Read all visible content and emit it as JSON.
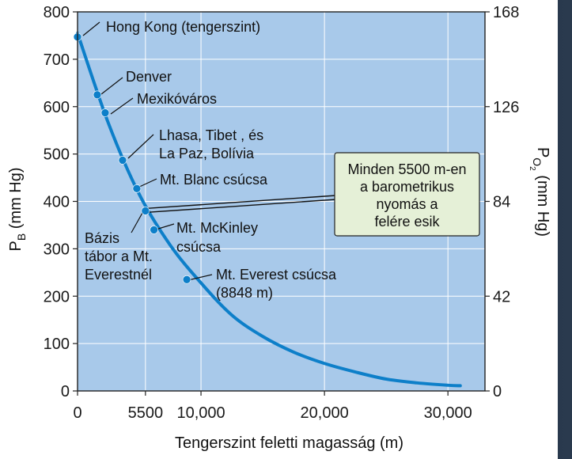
{
  "chart_data": {
    "type": "line",
    "xlabel": "Tengerszint feletti magasság (m)",
    "ylabel_left": "P",
    "ylabel_left_sub": "B",
    "ylabel_left_unit": " (mm Hg)",
    "ylabel_right": "P",
    "ylabel_right_sub": "O",
    "ylabel_right_sub2": "2",
    "ylabel_right_unit": " (mm Hg)",
    "xlim": [
      0,
      33000
    ],
    "ylim": [
      0,
      800
    ],
    "y2lim": [
      0,
      168
    ],
    "x_ticks": [
      0,
      5500,
      10000,
      20000,
      30000
    ],
    "x_tick_labels": [
      "0",
      "5500",
      "10,000",
      "20,000",
      "30,000"
    ],
    "y_ticks": [
      0,
      100,
      200,
      300,
      400,
      500,
      600,
      700,
      800
    ],
    "y_tick_labels": [
      "0",
      "100",
      "200",
      "300",
      "400",
      "500",
      "600",
      "700",
      "800"
    ],
    "y2_ticks": [
      0,
      42,
      84,
      126,
      168
    ],
    "y2_tick_labels": [
      "0",
      "42",
      "84",
      "126",
      "168"
    ],
    "grid": true,
    "line_color": "#0d7fc9",
    "plot_bg": "#a8c9ea",
    "curve": {
      "x": [
        0,
        2500,
        5000,
        7500,
        10000,
        12500,
        15000,
        17500,
        20000,
        22500,
        25000,
        27500,
        30000,
        31000
      ],
      "y": [
        755,
        565,
        415,
        308,
        228,
        160,
        115,
        82,
        58,
        40,
        25,
        17,
        12,
        11
      ]
    },
    "points": [
      {
        "x": 0,
        "y": 747
      },
      {
        "x": 1600,
        "y": 625
      },
      {
        "x": 2240,
        "y": 587
      },
      {
        "x": 3650,
        "y": 487
      },
      {
        "x": 4800,
        "y": 427
      },
      {
        "x": 5500,
        "y": 380
      },
      {
        "x": 6190,
        "y": 340
      },
      {
        "x": 8848,
        "y": 235
      }
    ],
    "annotations": [
      {
        "lines": [
          "Hong Kong (tengerszint)"
        ]
      },
      {
        "lines": [
          "Denver"
        ]
      },
      {
        "lines": [
          "Mexikóváros"
        ]
      },
      {
        "lines": [
          "Lhasa, Tibet , és",
          "La Paz, Bolívia"
        ]
      },
      {
        "lines": [
          "Mt. Blanc csúcsa"
        ]
      },
      {
        "lines": [
          "Mt. McKinley",
          "csúcsa"
        ]
      },
      {
        "lines": [
          "Bázis",
          "tábor a  Mt.",
          "Everestnél"
        ]
      },
      {
        "lines": [
          "Mt. Everest csúcsa",
          "(8848 m)"
        ]
      }
    ],
    "callout": {
      "lines": [
        "Minden 5500 m-en",
        "a barometrikus",
        "nyomás a",
        "felére esik"
      ],
      "bg": "#e5f0d7"
    }
  }
}
